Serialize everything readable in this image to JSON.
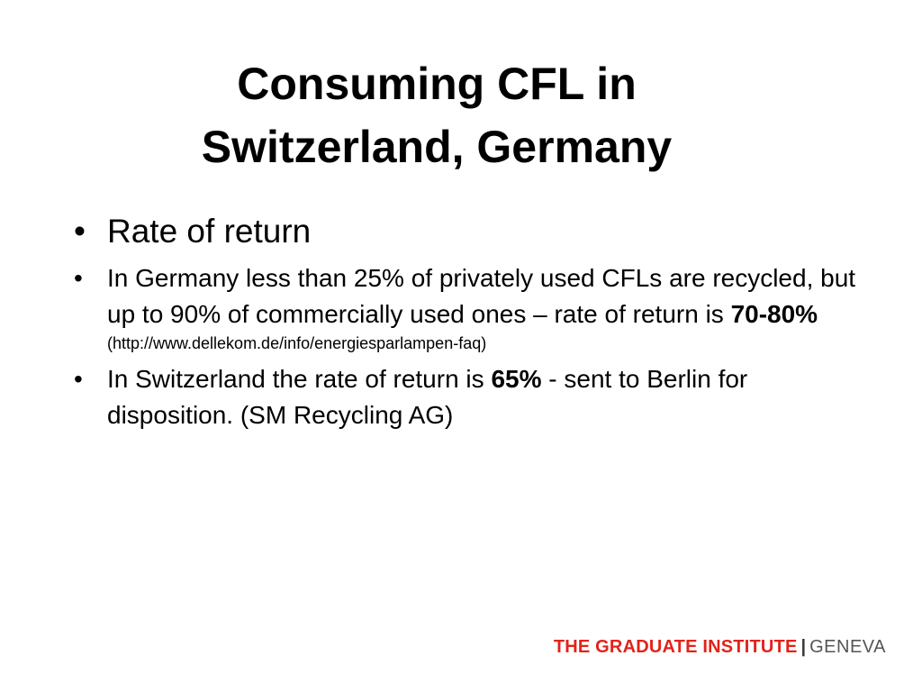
{
  "slide": {
    "title_lines": [
      "Consuming CFL in",
      "Switzerland, Germany"
    ],
    "bullets": [
      {
        "marker": "•",
        "text": "Rate of return"
      },
      {
        "marker": "•",
        "text_before_bold": "In Germany less than 25% of privately used CFLs are recycled, but up to 90% of commercially used ones – rate of return is ",
        "bold": "70-80%",
        "source": "(http://www.dellekom.de/info/energiesparlampen-faq)"
      },
      {
        "marker": "•",
        "text_before_bold": "In Switzerland the rate of return is ",
        "bold": "65%",
        "text_after_bold": " - sent to Berlin for disposition. (SM Recycling AG)"
      }
    ],
    "footer": {
      "institution": "THE GRADUATE INSTITUTE",
      "separator": "|",
      "city": "GENEVA"
    }
  },
  "colors": {
    "footer_red": "#e2231a",
    "footer_gray": "#555555"
  }
}
